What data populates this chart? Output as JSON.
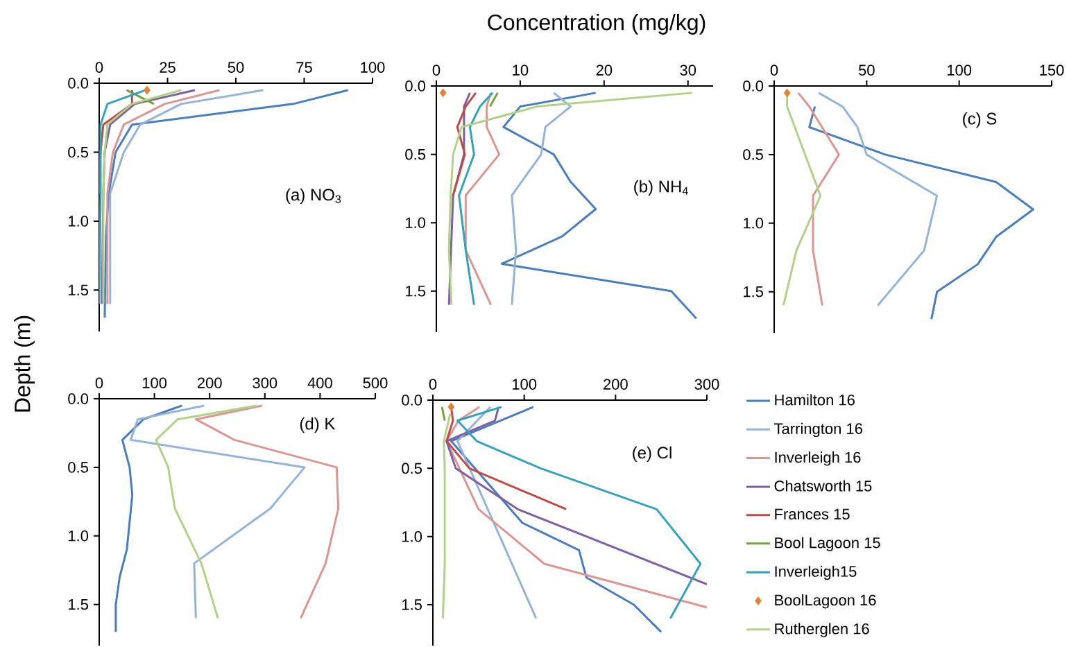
{
  "chart_data": [
    {
      "type": "line",
      "ylabel": "Depth (m)",
      "annotations": [
        "(a) NO$_{3}$"
      ],
      "xlim": [
        0,
        100
      ],
      "xticks": [
        0,
        25,
        50,
        75,
        100
      ],
      "ylim": [
        1.8,
        0
      ],
      "yticks": [
        {
          "value": 0,
          "label": "0.0"
        },
        {
          "value": 0.5,
          "label": "0.5"
        },
        {
          "value": 1,
          "label": "1.0"
        },
        {
          "value": 1.5,
          "label": "1.5"
        }
      ],
      "series": [
        {
          "color": "#4a7ebb",
          "x": [
            91,
            71,
            12,
            6,
            3.5,
            2.5,
            2
          ],
          "values": [
            0.05,
            0.15,
            0.3,
            0.5,
            0.8,
            1.1,
            1.7
          ]
        },
        {
          "color": "#95b3d7",
          "x": [
            60,
            30,
            15,
            9,
            4,
            4
          ],
          "values": [
            0.05,
            0.15,
            0.3,
            0.5,
            0.8,
            1.6
          ]
        },
        {
          "color": "#d99694",
          "x": [
            44,
            24,
            9,
            5,
            3,
            3
          ],
          "values": [
            0.05,
            0.15,
            0.3,
            0.5,
            0.8,
            1.6
          ]
        },
        {
          "color": "#7d60a0",
          "x": [
            35,
            13,
            4,
            2,
            1.5,
            1
          ],
          "values": [
            0.05,
            0.15,
            0.3,
            0.5,
            0.8,
            1.6
          ]
        },
        {
          "color": "#be4b48",
          "x": [
            12,
            12,
            1.5,
            0.5,
            0
          ],
          "values": [
            0.05,
            0.15,
            0.3,
            0.5,
            0.8
          ]
        },
        {
          "color": "#77a03e",
          "x": [
            10,
            20
          ],
          "values": [
            0.05,
            0.15
          ]
        },
        {
          "color": "#36a2b8",
          "x": [
            17,
            3,
            0.5,
            0.5,
            0
          ],
          "values": [
            0.05,
            0.15,
            0.3,
            0.8,
            1.6
          ]
        },
        {
          "type": "scatter",
          "marker": "diamond",
          "color": "#e38232",
          "x": [
            17.5
          ],
          "values": [
            0.05
          ]
        },
        {
          "color": "#b3d088",
          "x": [
            30,
            12,
            3,
            2,
            1.5,
            1.5
          ],
          "values": [
            0.05,
            0.15,
            0.3,
            0.5,
            0.8,
            1.6
          ]
        }
      ]
    },
    {
      "type": "line",
      "title": "Concentration (mg/kg)",
      "annotations": [
        "(b) NH$_{4}$"
      ],
      "xlim": [
        0,
        33
      ],
      "xticks": [
        0,
        10,
        20,
        30
      ],
      "ylim": [
        1.8,
        0
      ],
      "yticks": [
        {
          "value": 0,
          "label": "0.0"
        },
        {
          "value": 0.5,
          "label": "0.5"
        },
        {
          "value": 1,
          "label": "1.0"
        },
        {
          "value": 1.5,
          "label": "1.5"
        }
      ],
      "series": [
        {
          "color": "#4a7ebb",
          "x": [
            19,
            10,
            8,
            14,
            16,
            19,
            15,
            7.8,
            28,
            31
          ],
          "values": [
            0.05,
            0.15,
            0.3,
            0.5,
            0.7,
            0.9,
            1.1,
            1.3,
            1.5,
            1.7
          ]
        },
        {
          "color": "#95b3d7",
          "x": [
            14,
            16,
            13,
            12.5,
            9,
            9.5,
            9
          ],
          "values": [
            0.05,
            0.15,
            0.3,
            0.5,
            0.8,
            1.2,
            1.6
          ]
        },
        {
          "color": "#d99694",
          "x": [
            6.5,
            6,
            6,
            7.5,
            3.5,
            3.5,
            6.5
          ],
          "values": [
            0.05,
            0.15,
            0.3,
            0.5,
            0.8,
            1.2,
            1.6
          ]
        },
        {
          "color": "#7d60a0",
          "x": [
            4,
            3.3,
            3.3,
            2,
            1.5
          ],
          "values": [
            0.05,
            0.15,
            0.5,
            0.8,
            1.6
          ]
        },
        {
          "color": "#be4b48",
          "x": [
            4.7,
            3.5,
            2.5,
            3.4,
            2
          ],
          "values": [
            0.05,
            0.15,
            0.3,
            0.5,
            0.8
          ]
        },
        {
          "color": "#77a03e",
          "x": [
            7.3,
            6.4
          ],
          "values": [
            0.05,
            0.15
          ]
        },
        {
          "color": "#36a2b8",
          "x": [
            6.7,
            5.2,
            4,
            4.5,
            2.7,
            3.5,
            4.5
          ],
          "values": [
            0.05,
            0.15,
            0.3,
            0.5,
            0.8,
            1.2,
            1.6
          ]
        },
        {
          "type": "scatter",
          "marker": "diamond",
          "color": "#e38232",
          "x": [
            0.8
          ],
          "values": [
            0.05
          ]
        },
        {
          "color": "#b3d088",
          "x": [
            30.5,
            12,
            3,
            2,
            1.7,
            1.5,
            1.8
          ],
          "values": [
            0.05,
            0.15,
            0.3,
            0.5,
            0.8,
            1.2,
            1.6
          ]
        }
      ]
    },
    {
      "type": "line",
      "annotations": [
        "(c) S"
      ],
      "xlim": [
        0,
        150
      ],
      "xticks": [
        0,
        50,
        100,
        150
      ],
      "ylim": [
        1.8,
        0
      ],
      "yticks": [
        {
          "value": 0,
          "label": "0.0"
        },
        {
          "value": 0.5,
          "label": "0.5"
        },
        {
          "value": 1,
          "label": "1.0"
        },
        {
          "value": 1.5,
          "label": "1.5"
        }
      ],
      "series": [
        {
          "color": "#4a7ebb",
          "x": [
            22,
            19,
            60,
            120,
            140,
            120,
            110,
            88,
            85
          ],
          "values": [
            0.15,
            0.3,
            0.5,
            0.7,
            0.9,
            1.1,
            1.3,
            1.5,
            1.7
          ]
        },
        {
          "color": "#95b3d7",
          "x": [
            24,
            37,
            45,
            50,
            88,
            81,
            56
          ],
          "values": [
            0.05,
            0.15,
            0.3,
            0.5,
            0.8,
            1.2,
            1.6
          ]
        },
        {
          "color": "#d99694",
          "x": [
            13,
            19,
            35,
            21,
            21,
            26
          ],
          "values": [
            0.05,
            0.15,
            0.5,
            0.8,
            1.2,
            1.6
          ]
        },
        {
          "type": "scatter",
          "marker": "diamond",
          "color": "#e38232",
          "x": [
            7
          ],
          "values": [
            0.05
          ]
        },
        {
          "color": "#b3d088",
          "x": [
            7,
            7,
            25,
            12,
            5
          ],
          "values": [
            0.05,
            0.15,
            0.8,
            1.2,
            1.6
          ]
        }
      ]
    },
    {
      "type": "line",
      "annotations": [
        "(d) K"
      ],
      "xlim": [
        0,
        500
      ],
      "xticks": [
        0,
        100,
        200,
        300,
        400,
        500
      ],
      "ylim": [
        1.8,
        0
      ],
      "yticks": [
        {
          "value": 0,
          "label": "0.0"
        },
        {
          "value": 0.5,
          "label": "0.5"
        },
        {
          "value": 1,
          "label": "1.0"
        },
        {
          "value": 1.5,
          "label": "1.5"
        }
      ],
      "series": [
        {
          "color": "#4a7ebb",
          "x": [
            150,
            80,
            42,
            55,
            60,
            50,
            37,
            30,
            30
          ],
          "values": [
            0.05,
            0.15,
            0.3,
            0.5,
            0.7,
            1.1,
            1.3,
            1.5,
            1.7
          ]
        },
        {
          "color": "#95b3d7",
          "x": [
            190,
            70,
            57,
            372,
            310,
            172,
            175
          ],
          "values": [
            0.05,
            0.15,
            0.3,
            0.5,
            0.8,
            1.2,
            1.6
          ]
        },
        {
          "color": "#d99694",
          "x": [
            295,
            175,
            245,
            430,
            433,
            410,
            365
          ],
          "values": [
            0.05,
            0.15,
            0.3,
            0.5,
            0.8,
            1.2,
            1.6
          ]
        },
        {
          "color": "#b3d088",
          "x": [
            285,
            142,
            103,
            125,
            137,
            185,
            215
          ],
          "values": [
            0.05,
            0.15,
            0.3,
            0.5,
            0.8,
            1.2,
            1.6
          ]
        }
      ]
    },
    {
      "type": "line",
      "annotations": [
        "(e) Cl"
      ],
      "legend": "right",
      "xlim": [
        0,
        300
      ],
      "xticks": [
        0,
        100,
        200,
        300
      ],
      "ylim": [
        1.8,
        0
      ],
      "yticks": [
        {
          "value": 0,
          "label": "0.0"
        },
        {
          "value": 0.5,
          "label": "0.5"
        },
        {
          "value": 1,
          "label": "1.0"
        },
        {
          "value": 1.5,
          "label": "1.5"
        }
      ],
      "series": [
        {
          "name": "Hamilton 16",
          "color": "#4a7ebb",
          "x": [
            110,
            20,
            98,
            160,
            168,
            220,
            250
          ],
          "values": [
            0.05,
            0.3,
            0.9,
            1.1,
            1.3,
            1.5,
            1.7
          ]
        },
        {
          "name": "Tarrington 16",
          "color": "#95b3d7",
          "x": [
            63,
            27,
            113
          ],
          "values": [
            0.05,
            0.3,
            1.6
          ]
        },
        {
          "name": "Inverleigh 16",
          "color": "#d99694",
          "x": [
            51,
            28,
            15,
            50,
            122,
            300
          ],
          "values": [
            0.05,
            0.15,
            0.3,
            0.8,
            1.2,
            1.52
          ]
        },
        {
          "name": "Chatsworth 15",
          "color": "#7d60a0",
          "x": [
            72,
            68,
            15,
            25,
            93,
            300
          ],
          "values": [
            0.05,
            0.15,
            0.3,
            0.5,
            0.8,
            1.35
          ]
        },
        {
          "name": "Frances 15",
          "color": "#be4b48",
          "x": [
            20,
            22,
            15,
            40,
            146
          ],
          "values": [
            0.05,
            0.15,
            0.3,
            0.5,
            0.8
          ]
        },
        {
          "name": "Bool Lagoon 15",
          "color": "#77a03e",
          "x": [
            10,
            13
          ],
          "values": [
            0.05,
            0.15
          ]
        },
        {
          "name": "Inverleigh15",
          "color": "#36a2b8",
          "x": [
            75,
            27,
            48,
            118,
            245,
            293,
            260
          ],
          "values": [
            0.05,
            0.15,
            0.3,
            0.5,
            0.8,
            1.2,
            1.6
          ]
        },
        {
          "name": "BoolLagoon 16",
          "type": "scatter",
          "marker": "diamond",
          "color": "#e38232",
          "x": [
            20
          ],
          "values": [
            0.05
          ]
        },
        {
          "name": "Rutherglen 16",
          "color": "#b3d088",
          "x": [
            19,
            12,
            13,
            13,
            11
          ],
          "values": [
            0.1,
            0.3,
            0.5,
            1.2,
            1.6
          ]
        }
      ]
    }
  ]
}
